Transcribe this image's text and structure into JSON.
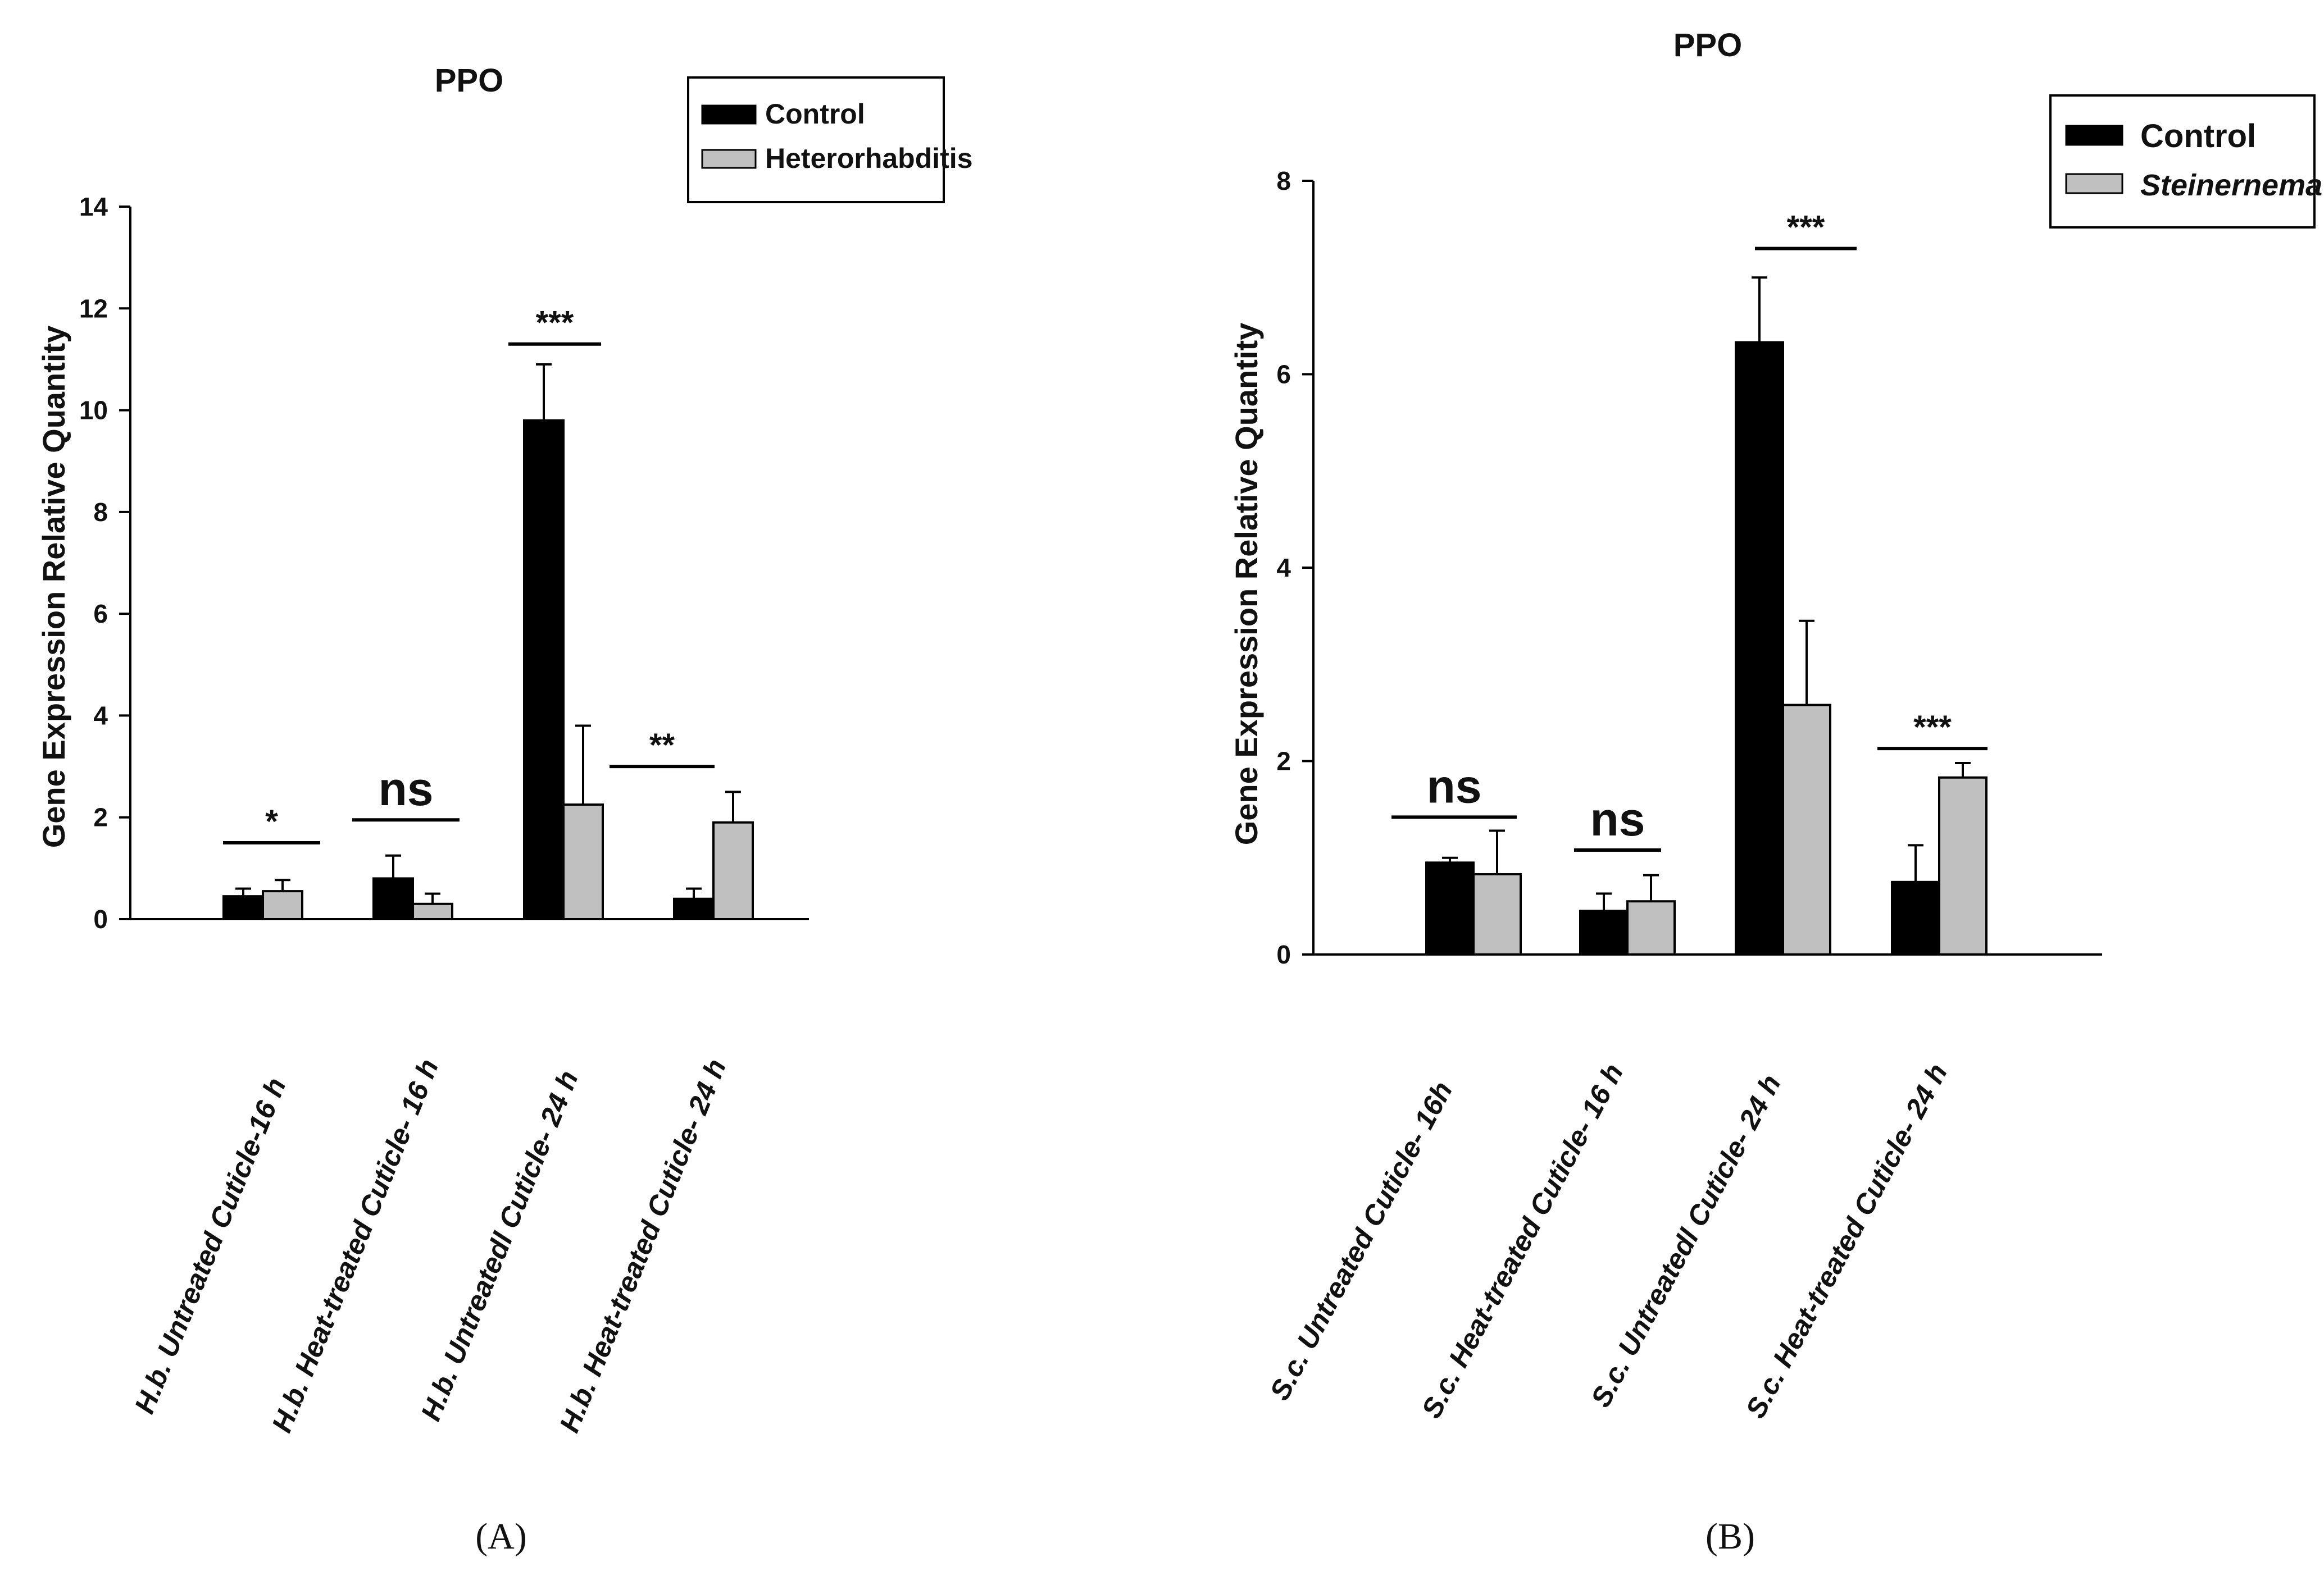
{
  "chart_data": [
    {
      "type": "bar",
      "panel_label": "(A)",
      "title": "PPO",
      "xlabel": "",
      "ylabel": "Gene Expression Relative Quantity",
      "ylim": [
        0,
        14
      ],
      "yticks": [
        0,
        2,
        4,
        6,
        8,
        10,
        12,
        14
      ],
      "grid": false,
      "legend_position": "top-right",
      "categories": [
        "H.b. Untreated Cuticle-16 h",
        "H.b. Heat-treated Cuticle- 16 h",
        "H.b. Untreatedl Cuticle- 24 h",
        "H.b. Heat-treated Cuticle- 24 h"
      ],
      "series": [
        {
          "name": "Control",
          "color": "#000000",
          "values": [
            0.45,
            0.8,
            9.8,
            0.4
          ],
          "errors": [
            0.15,
            0.45,
            1.1,
            0.2
          ]
        },
        {
          "name": "Heterorhabditis",
          "color": "#c0c0c0",
          "values": [
            0.55,
            0.3,
            2.25,
            1.9
          ],
          "errors": [
            0.22,
            0.2,
            1.55,
            0.6
          ]
        }
      ],
      "significance": [
        {
          "label": "*",
          "line_y": 1.5
        },
        {
          "label": "ns",
          "line_y": 1.95
        },
        {
          "label": "***",
          "line_y": 11.3
        },
        {
          "label": "**",
          "line_y": 3.0
        }
      ]
    },
    {
      "type": "bar",
      "panel_label": "(B)",
      "title": "PPO",
      "xlabel": "",
      "ylabel": "Gene Expression Relative Quantity",
      "ylim": [
        0,
        8
      ],
      "yticks": [
        0,
        2,
        4,
        6,
        8
      ],
      "grid": false,
      "legend_position": "top-right",
      "categories": [
        "S.c. Untreated Cuticle- 16h",
        "S.c. Heat-treated Cuticle- 16 h",
        "S.c. Untreatedl Cuticle- 24 h",
        "S.c. Heat-treated Cuticle- 24 h"
      ],
      "series": [
        {
          "name": "Control",
          "color": "#000000",
          "values": [
            0.95,
            0.45,
            6.33,
            0.75
          ],
          "errors": [
            0.05,
            0.18,
            0.67,
            0.38
          ]
        },
        {
          "name": "Steinernema",
          "color": "#c0c0c0",
          "values": [
            0.83,
            0.55,
            2.58,
            1.83
          ],
          "errors": [
            0.45,
            0.27,
            0.87,
            0.15
          ]
        }
      ],
      "significance": [
        {
          "label": "ns",
          "line_y": 1.42
        },
        {
          "label": "ns",
          "line_y": 1.08
        },
        {
          "label": "***",
          "line_y": 7.3
        },
        {
          "label": "***",
          "line_y": 2.13
        }
      ]
    }
  ]
}
